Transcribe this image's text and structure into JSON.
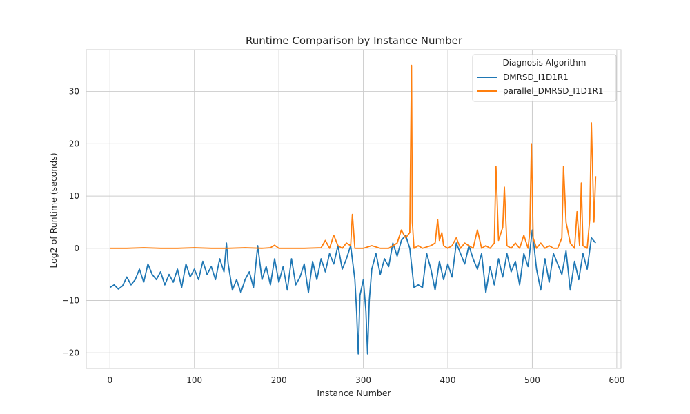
{
  "chart_data": {
    "type": "line",
    "title": "Runtime Comparison by Instance Number",
    "xlabel": "Instance Number",
    "ylabel": "Log2 of Runtime (seconds)",
    "xlim": [
      -28,
      605
    ],
    "ylim": [
      -23,
      38
    ],
    "xticks": [
      0,
      100,
      200,
      300,
      400,
      500,
      600
    ],
    "yticks": [
      -20,
      -10,
      0,
      10,
      20,
      30
    ],
    "grid": true,
    "legend": {
      "title": "Diagnosis Algorithm",
      "placement": "top-right"
    },
    "series": [
      {
        "name": "DMRSD_I1D1R1",
        "color": "#1f77b4",
        "x": [
          0,
          5,
          10,
          15,
          20,
          25,
          30,
          35,
          40,
          45,
          50,
          55,
          60,
          65,
          70,
          75,
          80,
          85,
          90,
          95,
          100,
          105,
          110,
          115,
          120,
          125,
          130,
          135,
          138,
          140,
          145,
          150,
          155,
          160,
          165,
          170,
          175,
          180,
          185,
          190,
          195,
          200,
          205,
          210,
          215,
          220,
          225,
          230,
          235,
          240,
          245,
          250,
          255,
          260,
          265,
          270,
          275,
          280,
          285,
          290,
          292,
          294,
          296,
          300,
          303,
          305,
          307,
          310,
          315,
          320,
          325,
          330,
          335,
          340,
          345,
          350,
          355,
          360,
          365,
          370,
          375,
          380,
          385,
          390,
          395,
          400,
          405,
          410,
          415,
          420,
          425,
          430,
          435,
          440,
          445,
          450,
          455,
          460,
          465,
          470,
          475,
          480,
          485,
          490,
          495,
          500,
          505,
          510,
          515,
          520,
          525,
          530,
          535,
          540,
          545,
          550,
          555,
          560,
          565,
          570,
          575
        ],
        "values": [
          -7.5,
          -7.0,
          -7.8,
          -7.2,
          -5.5,
          -7.0,
          -6.0,
          -4.0,
          -6.5,
          -3.0,
          -5.0,
          -6.0,
          -4.5,
          -7.0,
          -5.0,
          -6.5,
          -4.0,
          -7.5,
          -3.0,
          -5.5,
          -4.0,
          -6.0,
          -2.5,
          -5.0,
          -3.5,
          -6.0,
          -2.0,
          -4.5,
          1.0,
          -3.0,
          -8.0,
          -6.0,
          -8.5,
          -6.0,
          -4.5,
          -7.5,
          0.5,
          -6.0,
          -3.5,
          -7.0,
          -2.0,
          -6.5,
          -3.5,
          -8.0,
          -2.0,
          -7.0,
          -5.5,
          -3.0,
          -8.5,
          -2.5,
          -6.0,
          -2.0,
          -4.5,
          -1.0,
          -3.0,
          0.5,
          -4.0,
          -2.0,
          0.5,
          -6.0,
          -12.0,
          -20.2,
          -9.0,
          -6.0,
          -12.0,
          -20.2,
          -10.0,
          -4.0,
          -1.0,
          -5.0,
          -2.0,
          -3.5,
          1.0,
          -1.5,
          1.5,
          2.5,
          0.0,
          -7.5,
          -7.0,
          -7.5,
          -1.0,
          -4.0,
          -8.0,
          -2.5,
          -6.0,
          -3.0,
          -5.5,
          1.0,
          -1.0,
          -3.0,
          0.5,
          -2.0,
          -4.0,
          -1.0,
          -8.5,
          -3.5,
          -7.0,
          -2.0,
          -5.5,
          -1.0,
          -4.5,
          -2.5,
          -7.0,
          -1.0,
          -3.5,
          3.5,
          -4.0,
          -8.0,
          -2.0,
          -6.5,
          -1.0,
          -3.0,
          -5.0,
          -0.5,
          -8.0,
          -2.5,
          -6.0,
          -1.0,
          -4.0,
          2.0,
          1.0
        ]
      },
      {
        "name": "parallel_DMRSD_I1D1R1",
        "color": "#ff7f0e",
        "x": [
          0,
          20,
          40,
          60,
          80,
          100,
          120,
          140,
          160,
          180,
          190,
          195,
          200,
          210,
          230,
          250,
          255,
          260,
          265,
          270,
          275,
          280,
          285,
          287,
          290,
          295,
          300,
          310,
          320,
          330,
          340,
          345,
          350,
          355,
          357,
          358,
          360,
          365,
          370,
          380,
          385,
          388,
          390,
          393,
          395,
          400,
          405,
          410,
          415,
          420,
          425,
          430,
          435,
          440,
          445,
          450,
          455,
          457,
          460,
          465,
          467,
          470,
          475,
          480,
          485,
          490,
          495,
          497,
          499,
          501,
          505,
          510,
          515,
          520,
          525,
          530,
          535,
          537,
          540,
          545,
          550,
          553,
          556,
          558,
          560,
          565,
          568,
          570,
          573,
          575
        ],
        "values": [
          0.0,
          0.0,
          0.1,
          0.0,
          0.0,
          0.1,
          0.0,
          0.0,
          0.1,
          0.0,
          0.1,
          0.6,
          0.0,
          0.0,
          0.0,
          0.1,
          1.5,
          0.0,
          2.5,
          0.5,
          0.0,
          1.0,
          0.5,
          6.5,
          0.0,
          0.0,
          0.0,
          0.5,
          0.0,
          0.0,
          1.0,
          3.5,
          2.0,
          3.0,
          35.0,
          5.0,
          0.0,
          0.5,
          0.0,
          0.5,
          1.0,
          5.5,
          1.5,
          3.0,
          0.5,
          0.0,
          0.5,
          2.0,
          0.0,
          1.0,
          0.5,
          0.0,
          3.5,
          0.0,
          0.5,
          0.0,
          1.0,
          15.7,
          1.5,
          4.0,
          11.7,
          0.5,
          0.0,
          1.0,
          0.0,
          2.5,
          0.0,
          3.0,
          20.0,
          2.0,
          0.0,
          1.0,
          0.0,
          0.5,
          0.0,
          0.0,
          2.0,
          15.7,
          5.0,
          1.0,
          0.0,
          7.0,
          0.5,
          12.5,
          0.5,
          0.0,
          5.5,
          24.0,
          5.0,
          13.8
        ]
      }
    ]
  }
}
